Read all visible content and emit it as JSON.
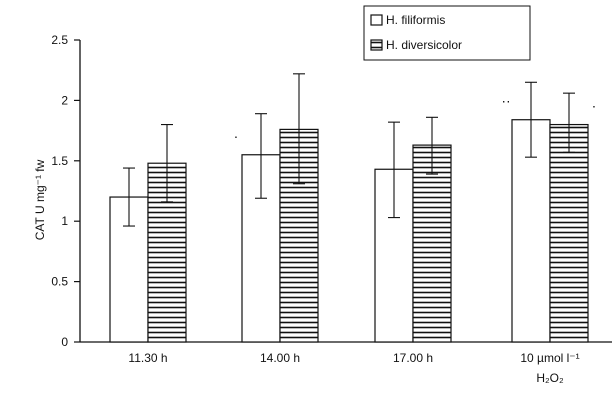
{
  "chart_data": {
    "type": "bar",
    "ylabel": "CAT U mg⁻¹ fw",
    "ylim": [
      0,
      2.5
    ],
    "yticks": [
      {
        "value": 0,
        "label": "0"
      },
      {
        "value": 0.5,
        "label": "0.5"
      },
      {
        "value": 1,
        "label": "1"
      },
      {
        "value": 1.5,
        "label": "1.5"
      },
      {
        "value": 2,
        "label": "2"
      },
      {
        "value": 2.5,
        "label": "2.5"
      }
    ],
    "categories": [
      {
        "line1": "11.30 h",
        "line2": ""
      },
      {
        "line1": "14.00 h",
        "line2": ""
      },
      {
        "line1": "17.00 h",
        "line2": ""
      },
      {
        "line1": "10 µmol l⁻¹",
        "line2": "H₂O₂"
      }
    ],
    "series": [
      {
        "name": "H. filiformis",
        "fill": "open",
        "values": [
          1.2,
          1.55,
          1.43,
          1.84
        ],
        "err_low": [
          0.96,
          1.19,
          1.03,
          1.53
        ],
        "err_high": [
          1.44,
          1.89,
          1.82,
          2.15
        ],
        "marks": [
          "",
          "·",
          "",
          "··"
        ]
      },
      {
        "name": "H. diversicolor",
        "fill": "hatched",
        "values": [
          1.48,
          1.76,
          1.63,
          1.8
        ],
        "err_low": [
          1.16,
          1.31,
          1.39,
          1.57
        ],
        "err_high": [
          1.8,
          2.22,
          1.86,
          2.06
        ],
        "marks": [
          "",
          "",
          "",
          "·"
        ]
      }
    ],
    "legend_position": "top-right",
    "grid": false
  }
}
